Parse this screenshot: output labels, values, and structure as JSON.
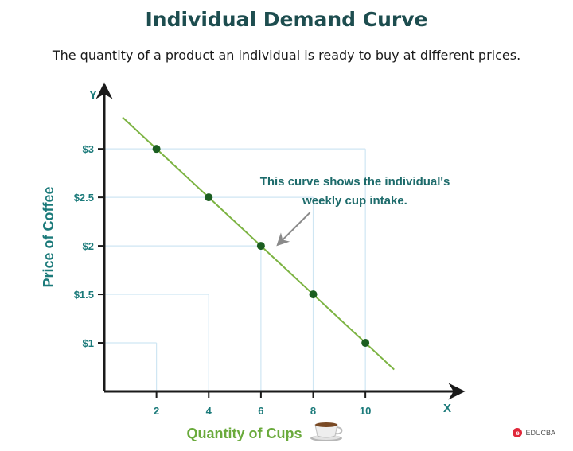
{
  "chart_data": {
    "type": "line",
    "title": "Individual Demand Curve",
    "subtitle": "The quantity of a product an individual is ready to buy at different prices.",
    "xlabel": "Quantity of Cups",
    "ylabel": "Price of Coffee",
    "x_axis_letter": "X",
    "y_axis_letter": "Y",
    "x_ticks": [
      2,
      4,
      6,
      8,
      10
    ],
    "x_tick_labels": [
      "2",
      "4",
      "6",
      "8",
      "10"
    ],
    "y_ticks": [
      1,
      1.5,
      2,
      2.5,
      3
    ],
    "y_tick_labels": [
      "$1",
      "$1.5",
      "$2",
      "$2.5",
      "$3"
    ],
    "xlim": [
      0,
      13.5
    ],
    "ylim": [
      0.5,
      3.6
    ],
    "grid": true,
    "series": [
      {
        "x": [
          2,
          4,
          6,
          8,
          10
        ],
        "y": [
          3,
          2.5,
          2,
          1.5,
          1
        ]
      }
    ],
    "annotation": {
      "lines": [
        "This curve shows the individual's",
        "weekly cup intake."
      ],
      "target": {
        "x": 6.6,
        "y": 2
      }
    },
    "colors": {
      "line": "#7cb342",
      "point": "#1b5e20",
      "axis_text": "#1b7a7a",
      "xlabel": "#6aaa3c",
      "grid": "#cfe6f3",
      "annotation": "#1d6b6b",
      "arrow": "#8a8a8a"
    }
  },
  "icons": {
    "cup": "coffee-cup-icon"
  },
  "watermark": {
    "text": "EDUCBA",
    "logo_letter": "e"
  }
}
